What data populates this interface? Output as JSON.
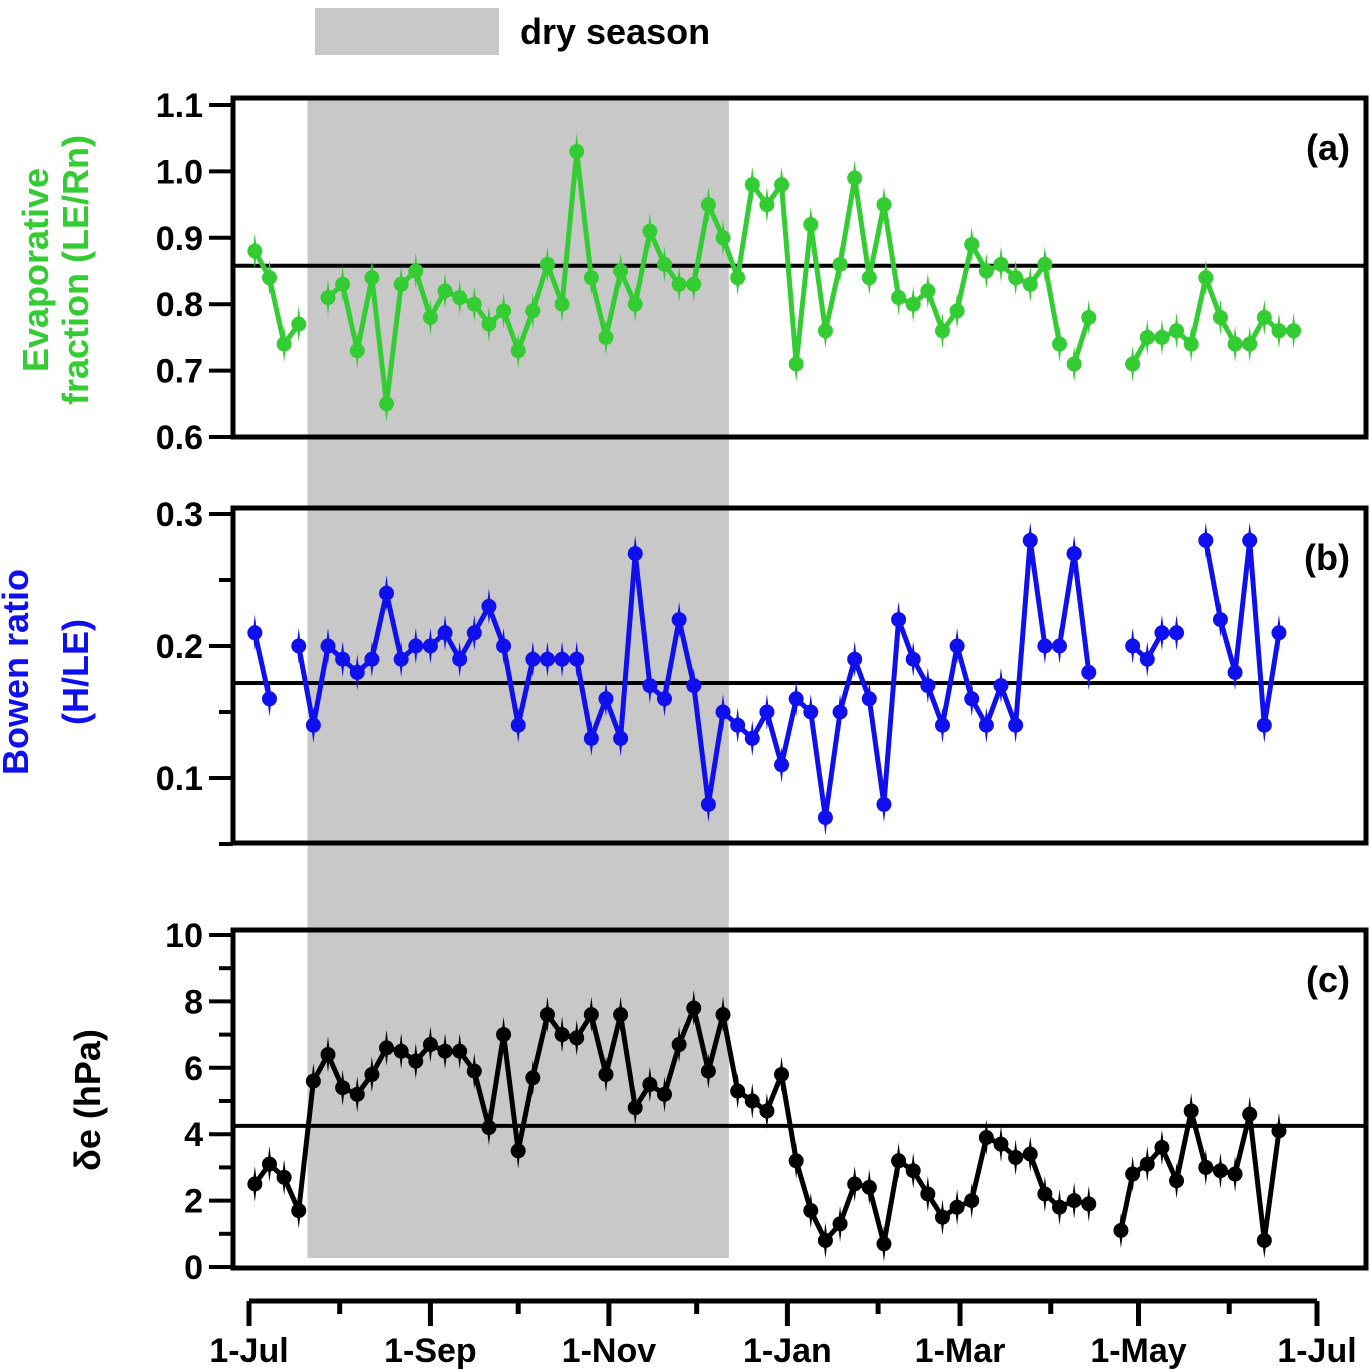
{
  "legend": {
    "label": "dry season",
    "color": "#c8c8c8"
  },
  "x_axis": {
    "tick_labels": [
      "1-Jul",
      "1-Sep",
      "1-Nov",
      "1-Jan",
      "1-Mar",
      "1-May",
      "1-Jul"
    ],
    "tick_days": [
      0,
      62,
      123,
      184,
      243,
      304,
      365
    ],
    "minor_tick_days": [
      31,
      92,
      153,
      215,
      274,
      335
    ],
    "range_days": [
      -5,
      369
    ]
  },
  "dry_season": {
    "start_day": 20,
    "end_day": 164
  },
  "chart_data": [
    {
      "type": "line",
      "panel_label": "(a)",
      "ylabel_lines": [
        "Evaporative",
        "fraction (LE/Rn)"
      ],
      "color": "#33cc33",
      "ylim": [
        0.6,
        1.1
      ],
      "yticks": [
        0.6,
        0.7,
        0.8,
        0.9,
        1.0,
        1.1
      ],
      "ytick_labels": [
        "0.6",
        "0.7",
        "0.8",
        "0.9",
        "1.0",
        "1.1"
      ],
      "reference_line": 0.858,
      "segments": [
        {
          "x": [
            2,
            7,
            12,
            17
          ],
          "y": [
            0.88,
            0.84,
            0.74,
            0.77
          ]
        },
        {
          "x": [
            27,
            32,
            37,
            42,
            47,
            52,
            57,
            62,
            67,
            72,
            77,
            82,
            87,
            92,
            97,
            102,
            107,
            112,
            117,
            122,
            127,
            132,
            137,
            142,
            147,
            152,
            157,
            162,
            167,
            172,
            177,
            182,
            187,
            192,
            197,
            202,
            207,
            212,
            217,
            222,
            227,
            232,
            237,
            242,
            247,
            252,
            257,
            262,
            267,
            272,
            277
          ],
          "y": [
            0.81,
            0.83,
            0.73,
            0.84,
            0.65,
            0.83,
            0.85,
            0.78,
            0.82,
            0.81,
            0.8,
            0.77,
            0.79,
            0.73,
            0.79,
            0.86,
            0.8,
            1.03,
            0.84,
            0.75,
            0.85,
            0.8,
            0.91,
            0.86,
            0.83,
            0.83,
            0.95,
            0.9,
            0.84,
            0.98,
            0.95,
            0.98,
            0.71,
            0.92,
            0.76,
            0.86,
            0.99,
            0.84,
            0.95,
            0.81,
            0.8,
            0.82,
            0.76,
            0.79,
            0.89,
            0.85,
            0.86,
            0.84,
            0.83,
            0.86,
            0.74
          ]
        },
        {
          "x": [
            282,
            287
          ],
          "y": [
            0.71,
            0.78
          ]
        },
        {
          "x": [
            302,
            307,
            312,
            317,
            322,
            327,
            332,
            337,
            342,
            347,
            352,
            357
          ],
          "y": [
            0.71,
            0.75,
            0.75,
            0.76,
            0.74,
            0.84,
            0.78,
            0.74,
            0.74,
            0.78,
            0.76,
            0.76
          ]
        }
      ]
    },
    {
      "type": "line",
      "panel_label": "(b)",
      "ylabel_lines": [
        "Bowen ratio",
        "(H/LE)"
      ],
      "color": "#1010ee",
      "ylim": [
        0.05,
        0.3
      ],
      "yticks": [
        0.05,
        0.1,
        0.15,
        0.2,
        0.25,
        0.3
      ],
      "ytick_labels": [
        "",
        "0.1",
        "",
        "0.2",
        "",
        "0.3"
      ],
      "reference_line": 0.172,
      "segments": [
        {
          "x": [
            2,
            7
          ],
          "y": [
            0.21,
            0.16
          ]
        },
        {
          "x": [
            17,
            22,
            27,
            32,
            37,
            42,
            47,
            52,
            57,
            62,
            67,
            72,
            77,
            82,
            87,
            92,
            97,
            102,
            107,
            112,
            117,
            122,
            127,
            132,
            137,
            142,
            147,
            152,
            157,
            162,
            167,
            172,
            177,
            182,
            187,
            192,
            197,
            202,
            207,
            212,
            217,
            222,
            227,
            232,
            237,
            242,
            247,
            252,
            257,
            262,
            267,
            272,
            277,
            282
          ],
          "y": [
            0.2,
            0.14,
            0.2,
            0.19,
            0.18,
            0.19,
            0.24,
            0.19,
            0.2,
            0.2,
            0.21,
            0.19,
            0.21,
            0.23,
            0.2,
            0.14,
            0.19,
            0.19,
            0.19,
            0.19,
            0.13,
            0.16,
            0.13,
            0.27,
            0.17,
            0.16,
            0.22,
            0.17,
            0.08,
            0.15,
            0.14,
            0.13,
            0.15,
            0.11,
            0.16,
            0.15,
            0.07,
            0.15,
            0.19,
            0.16,
            0.08,
            0.22,
            0.19,
            0.17,
            0.14,
            0.2,
            0.16,
            0.14,
            0.17,
            0.14,
            0.28,
            0.2,
            0.2,
            0.27
          ]
        },
        {
          "x": [
            282,
            287
          ],
          "y": [
            0.27,
            0.18
          ]
        },
        {
          "x": [
            302,
            307,
            312,
            317
          ],
          "y": [
            0.2,
            0.19,
            0.21,
            0.21
          ]
        },
        {
          "x": [
            327,
            332,
            337,
            342,
            347,
            352
          ],
          "y": [
            0.28,
            0.22,
            0.18,
            0.28,
            0.14,
            0.21
          ]
        }
      ]
    },
    {
      "type": "line",
      "panel_label": "(c)",
      "ylabel_lines": [
        "δe  (hPa)"
      ],
      "color": "#000000",
      "ylim": [
        0,
        10
      ],
      "yticks": [
        0,
        1,
        2,
        3,
        4,
        5,
        6,
        7,
        8,
        9,
        10
      ],
      "ytick_labels": [
        "0",
        "",
        "2",
        "",
        "4",
        "",
        "6",
        "",
        "8",
        "",
        "10"
      ],
      "reference_line": 4.25,
      "segments": [
        {
          "x": [
            2,
            7,
            12,
            17,
            22,
            27,
            32,
            37,
            42,
            47,
            52,
            57,
            62,
            67,
            72,
            77,
            82,
            87,
            92,
            97,
            102,
            107,
            112,
            117,
            122,
            127,
            132,
            137,
            142,
            147,
            152,
            157,
            162,
            167,
            172,
            177,
            182,
            187,
            192,
            197,
            202,
            207,
            212,
            217,
            222,
            227,
            232,
            237,
            242,
            247,
            252,
            257,
            262,
            267,
            272,
            277,
            282,
            287
          ],
          "y": [
            2.5,
            3.1,
            2.7,
            1.7,
            5.6,
            6.4,
            5.4,
            5.2,
            5.8,
            6.6,
            6.5,
            6.2,
            6.7,
            6.5,
            6.5,
            5.9,
            4.2,
            7.0,
            3.5,
            5.7,
            7.6,
            7.0,
            6.9,
            7.6,
            5.8,
            7.6,
            4.8,
            5.5,
            5.2,
            6.7,
            7.8,
            5.9,
            7.6,
            5.3,
            5.0,
            4.7,
            5.8,
            3.2,
            1.7,
            0.8,
            1.3,
            2.5,
            2.4,
            0.7,
            3.2,
            2.9,
            2.2,
            1.5,
            1.8,
            2.0,
            3.9,
            3.7,
            3.3,
            3.4,
            2.2,
            1.8,
            2.0,
            1.9
          ]
        },
        {
          "x": [
            298,
            302,
            307,
            312,
            317,
            322,
            327,
            332,
            337,
            342,
            347,
            352
          ],
          "y": [
            1.1,
            2.8,
            3.1,
            3.6,
            2.6,
            4.7,
            3.0,
            2.9,
            2.8,
            4.6,
            0.8,
            4.1
          ]
        }
      ]
    }
  ]
}
